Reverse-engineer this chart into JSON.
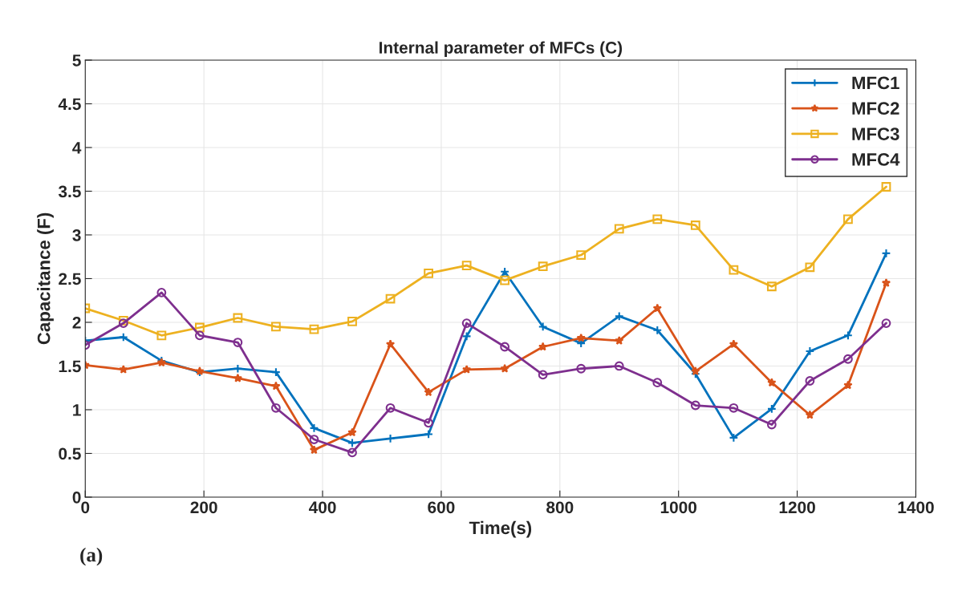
{
  "chart_data": {
    "type": "line",
    "title": "Internal parameter of MFCs (C)",
    "xlabel": "Time(s)",
    "ylabel": "Capacitance (F)",
    "x": [
      0,
      64.3,
      128.6,
      192.9,
      257.1,
      321.4,
      385.7,
      450,
      514.3,
      578.6,
      642.9,
      707.1,
      771.4,
      835.7,
      900,
      964.3,
      1028.6,
      1092.9,
      1157.1,
      1221.4,
      1285.7,
      1350
    ],
    "series": [
      {
        "name": "MFC1",
        "color": "#0072bd",
        "marker": "cross",
        "values": [
          1.79,
          1.83,
          1.56,
          1.43,
          1.47,
          1.43,
          0.79,
          0.62,
          0.67,
          0.72,
          1.84,
          2.58,
          1.95,
          1.76,
          2.07,
          1.91,
          1.41,
          0.68,
          1.01,
          1.67,
          1.85,
          2.79
        ]
      },
      {
        "name": "MFC2",
        "color": "#d95319",
        "marker": "star",
        "values": [
          1.51,
          1.46,
          1.54,
          1.44,
          1.36,
          1.27,
          0.54,
          0.74,
          1.75,
          1.2,
          1.46,
          1.47,
          1.72,
          1.82,
          1.79,
          2.16,
          1.44,
          1.75,
          1.31,
          0.94,
          1.28,
          2.45
        ]
      },
      {
        "name": "MFC3",
        "color": "#edb120",
        "marker": "square",
        "values": [
          2.16,
          2.02,
          1.85,
          1.94,
          2.05,
          1.95,
          1.92,
          2.01,
          2.27,
          2.56,
          2.65,
          2.48,
          2.64,
          2.77,
          3.07,
          3.18,
          3.11,
          2.6,
          2.41,
          2.63,
          3.18,
          3.55
        ]
      },
      {
        "name": "MFC4",
        "color": "#7e2f8e",
        "marker": "circle",
        "values": [
          1.74,
          1.99,
          2.34,
          1.85,
          1.77,
          1.02,
          0.66,
          0.51,
          1.02,
          0.85,
          1.99,
          1.72,
          1.4,
          1.47,
          1.5,
          1.31,
          1.05,
          1.02,
          0.83,
          1.33,
          1.58,
          1.99
        ]
      }
    ],
    "xlim": [
      0,
      1400
    ],
    "xticks": [
      0,
      200,
      400,
      600,
      800,
      1000,
      1200,
      1400
    ],
    "ylim": [
      0,
      5
    ],
    "yticks": [
      0,
      0.5,
      1,
      1.5,
      2,
      2.5,
      3,
      3.5,
      4,
      4.5,
      5
    ],
    "grid": true,
    "legend": "top right",
    "line_style": "solid",
    "annotations": [
      "(a)"
    ]
  }
}
